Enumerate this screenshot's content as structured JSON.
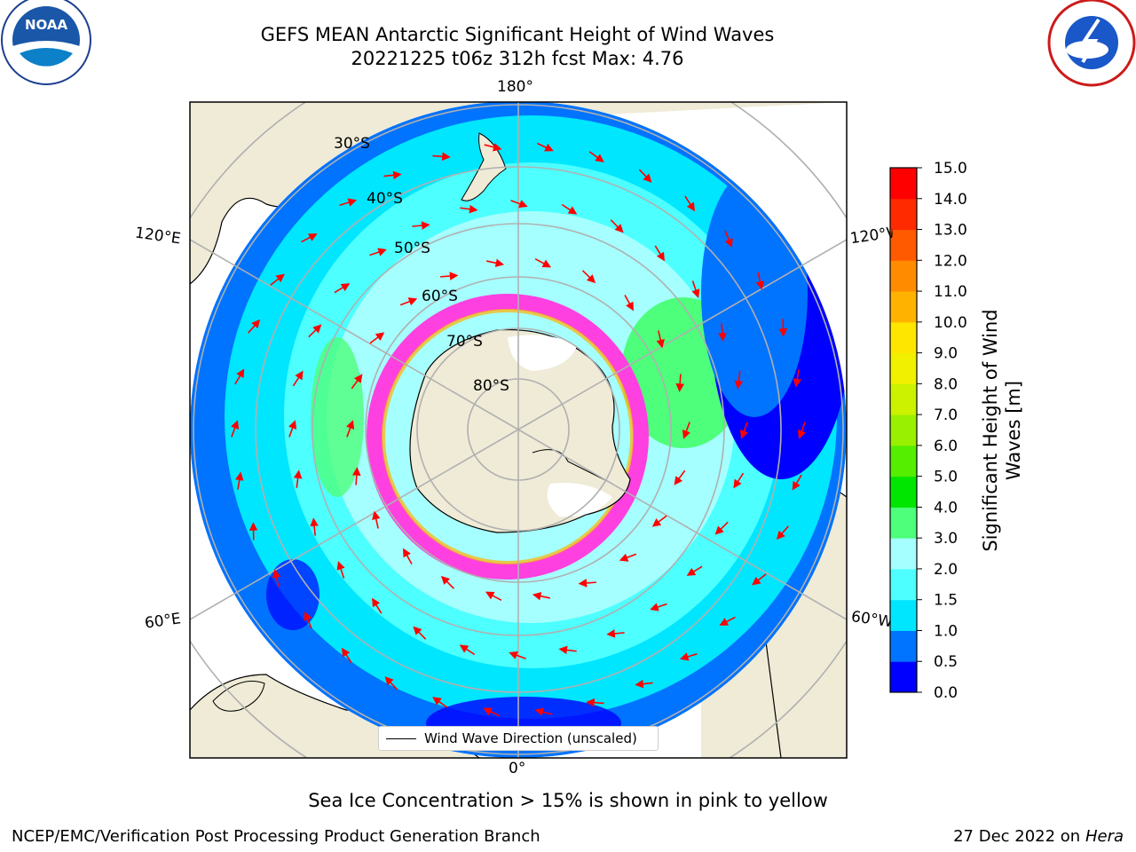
{
  "header": {
    "title_line1": "GEFS MEAN Antarctic Significant Height of Wind Waves",
    "title_line2": "20221225 t06z 312h fcst   Max: 4.76"
  },
  "logos": {
    "left": "noaa-logo",
    "right": "nws-logo"
  },
  "map": {
    "projection": "south-polar-stereographic",
    "meridian_labels": [
      {
        "key": "top",
        "text": "180°"
      },
      {
        "key": "bottom",
        "text": "0°"
      },
      {
        "key": "upper_left",
        "text": "120°E"
      },
      {
        "key": "lower_left",
        "text": "60°E"
      },
      {
        "key": "upper_right",
        "text": "120°W"
      },
      {
        "key": "lower_right",
        "text": "60°W"
      }
    ],
    "latitude_labels": [
      "30°S",
      "40°S",
      "50°S",
      "60°S",
      "70°S",
      "80°S"
    ],
    "colors": {
      "land": "#efebd7",
      "ice_shelf": "#ffffff",
      "arrow": "#ff0000"
    }
  },
  "legend": {
    "label": "Wind Wave Direction (unscaled)"
  },
  "colorbar": {
    "title": "Significant Height of Wind Waves [m]",
    "ticks": [
      "0.0",
      "0.5",
      "1.0",
      "1.5",
      "2.0",
      "3.0",
      "4.0",
      "5.0",
      "6.0",
      "7.0",
      "8.0",
      "9.0",
      "10.0",
      "11.0",
      "12.0",
      "13.0",
      "14.0",
      "15.0"
    ],
    "colors": [
      "#0000ff",
      "#0073ff",
      "#00e6ff",
      "#4dffff",
      "#a6ffff",
      "#4dff7a",
      "#00e600",
      "#55ee00",
      "#99f000",
      "#ccf200",
      "#f0f000",
      "#ffe600",
      "#ffb300",
      "#ff8c00",
      "#ff5a00",
      "#ff2a00",
      "#ff0000"
    ]
  },
  "footer": {
    "note": "Sea Ice Concentration > 15% is shown in pink to yellow",
    "credit_left": "NCEP/EMC/Verification Post Processing Product Generation Branch",
    "date": "27 Dec 2022 on",
    "machine": "Hera"
  }
}
